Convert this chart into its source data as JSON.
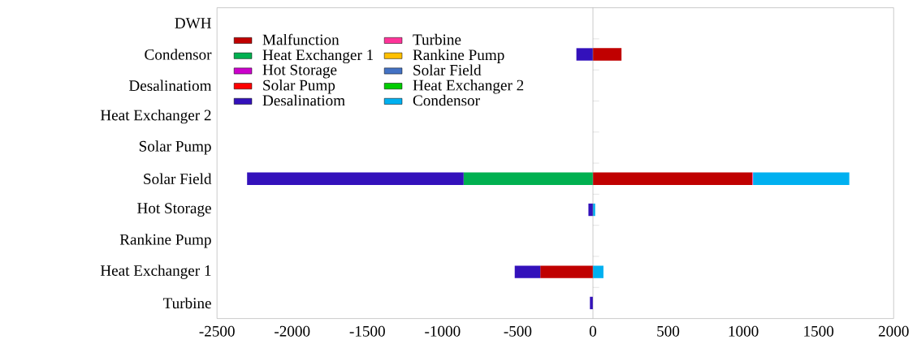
{
  "chart_data": {
    "type": "bar",
    "orientation": "horizontal",
    "stacked": true,
    "categories": [
      "DWH",
      "Condensor",
      "Desalinatiom",
      "Heat Exchanger 2",
      "Solar Pump",
      "Solar Field",
      "Hot Storage",
      "Rankine Pump",
      "Heat Exchanger 1",
      "Turbine"
    ],
    "series": [
      {
        "name": "Malfunction",
        "color": "#c00000",
        "values": [
          null,
          190,
          null,
          null,
          null,
          1060,
          null,
          null,
          -350,
          null
        ]
      },
      {
        "name": "Turbine",
        "color": "#ff3399",
        "values": [
          null,
          null,
          null,
          null,
          null,
          5,
          null,
          null,
          null,
          null
        ]
      },
      {
        "name": "Heat Exchanger 1",
        "color": "#00b050",
        "values": [
          null,
          null,
          null,
          null,
          null,
          -860,
          null,
          null,
          null,
          null
        ]
      },
      {
        "name": "Rankine Pump",
        "color": "#ffc000",
        "values": [
          null,
          null,
          null,
          null,
          null,
          null,
          null,
          null,
          null,
          null
        ]
      },
      {
        "name": "Hot Storage",
        "color": "#cc00cc",
        "values": [
          null,
          null,
          null,
          null,
          null,
          null,
          null,
          null,
          null,
          null
        ]
      },
      {
        "name": "Solar Field",
        "color": "#4472c4",
        "values": [
          null,
          null,
          null,
          null,
          null,
          null,
          null,
          null,
          null,
          null
        ]
      },
      {
        "name": "Solar Pump",
        "color": "#ff0000",
        "values": [
          null,
          null,
          null,
          null,
          null,
          null,
          null,
          null,
          null,
          null
        ]
      },
      {
        "name": "Heat Exchanger 2",
        "color": "#00cc00",
        "values": [
          null,
          null,
          null,
          null,
          null,
          null,
          null,
          null,
          null,
          null
        ]
      },
      {
        "name": "Desalinatiom",
        "color": "#3311bb",
        "values": [
          null,
          -110,
          null,
          null,
          null,
          -1440,
          -30,
          null,
          -170,
          -20
        ]
      },
      {
        "name": "Condensor",
        "color": "#00b0f0",
        "values": [
          null,
          null,
          null,
          null,
          null,
          640,
          15,
          null,
          70,
          null
        ]
      }
    ],
    "xlim": [
      -2500,
      2000
    ],
    "xticks": [
      -2500,
      -2000,
      -1500,
      -1000,
      -500,
      0,
      500,
      1000,
      1500,
      2000
    ],
    "legend": "top left"
  }
}
